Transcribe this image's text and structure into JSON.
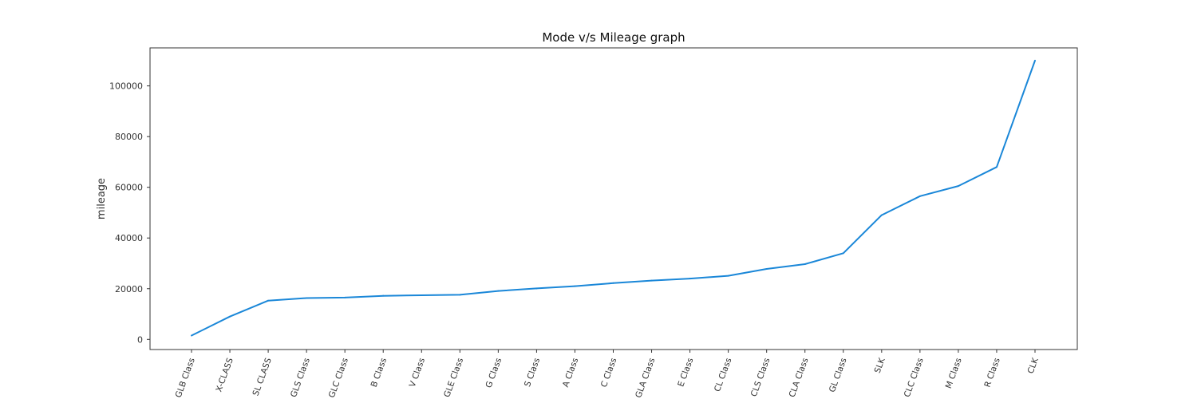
{
  "chart_data": {
    "type": "line",
    "title": "Mode v/s Mileage graph",
    "xlabel": "",
    "ylabel": "mileage",
    "categories": [
      "GLB Class",
      "X-CLASS",
      "SL CLASS",
      "GLS Class",
      "GLC Class",
      "B Class",
      "V Class",
      "GLE Class",
      "G Class",
      "S Class",
      "A Class",
      "C Class",
      "GLA Class",
      "E Class",
      "CL Class",
      "CLS Class",
      "CLA Class",
      "GL Class",
      "SLK",
      "CLC Class",
      "M Class",
      "R Class",
      "CLK"
    ],
    "values": [
      1500,
      9000,
      15300,
      16300,
      16500,
      17200,
      17400,
      17600,
      19100,
      20100,
      21000,
      22200,
      23200,
      24000,
      25100,
      27800,
      29700,
      34000,
      49000,
      56500,
      60500,
      68000,
      110000
    ],
    "yticks": [
      0,
      20000,
      40000,
      60000,
      80000,
      100000
    ],
    "ylim": [
      -4000,
      115000
    ],
    "grid": false,
    "line_color": "#1a87d8"
  }
}
